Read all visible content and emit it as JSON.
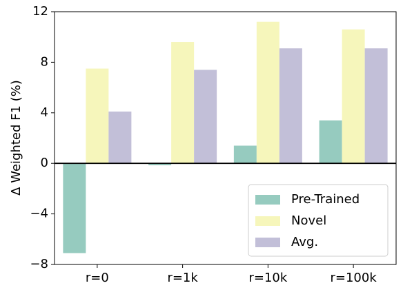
{
  "chart_data": {
    "type": "bar",
    "ylabel": "Δ Weighted F1 (%)",
    "categories": [
      "r=0",
      "r=1k",
      "r=10k",
      "r=100k"
    ],
    "series": [
      {
        "name": "Pre-Trained",
        "color": "#96cbbf",
        "values": [
          -7.1,
          -0.15,
          1.4,
          3.4
        ]
      },
      {
        "name": "Novel",
        "color": "#f6f6bb",
        "values": [
          7.5,
          9.6,
          11.2,
          10.6
        ]
      },
      {
        "name": "Avg.",
        "color": "#c2bfd8",
        "values": [
          4.1,
          7.4,
          9.1,
          9.1
        ]
      }
    ],
    "ylim": [
      -8,
      12
    ],
    "yticks": [
      {
        "value": -8,
        "label": "−8"
      },
      {
        "value": -4,
        "label": "−4"
      },
      0,
      4,
      8,
      12
    ],
    "legend": "lower right"
  }
}
